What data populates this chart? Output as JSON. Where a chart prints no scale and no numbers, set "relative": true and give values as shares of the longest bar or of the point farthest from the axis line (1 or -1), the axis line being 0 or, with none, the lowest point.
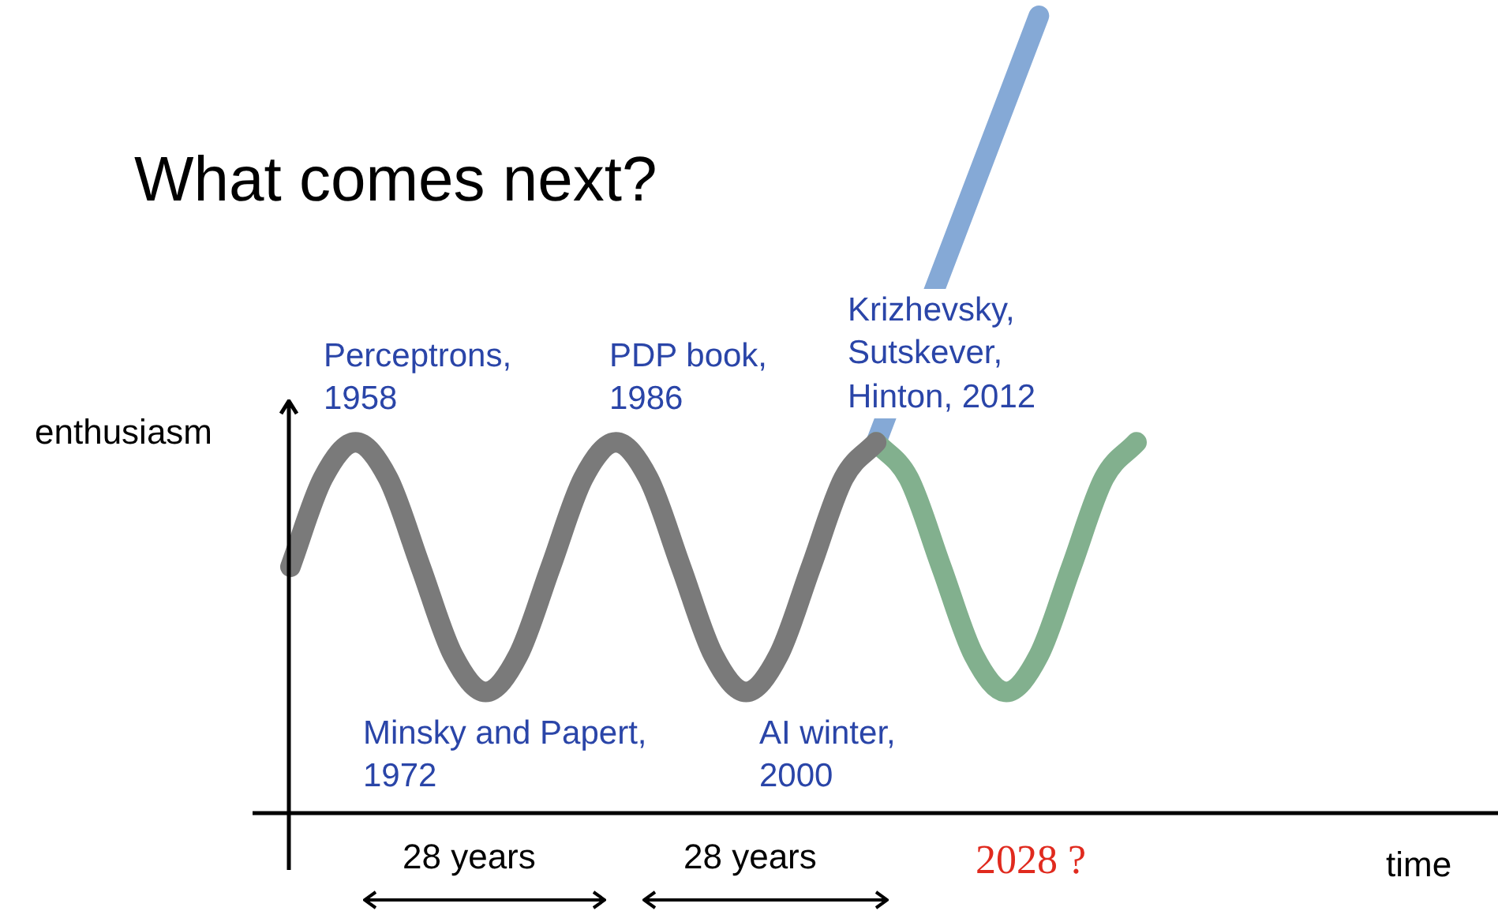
{
  "chart_data": {
    "type": "line",
    "relative": true,
    "title": "What comes next?",
    "ylabel": "enthusiasm",
    "categories": [
      null,
      null,
      null,
      null,
      null,
      null,
      null,
      null,
      null,
      null,
      null,
      null,
      null,
      null,
      null,
      null,
      null,
      null,
      null,
      null,
      null,
      null,
      null,
      null,
      null,
      null,
      null
    ],
    "series": [
      {
        "color": "#7a7a7a",
        "values": [
          0.309,
          0.42,
          0.465,
          0.42,
          0.309,
          0.198,
          0.152,
          0.198,
          0.309,
          0.42,
          0.465,
          0.42,
          0.309,
          0.198,
          0.152,
          0.198,
          0.309,
          0.42,
          0.465,
          null,
          null,
          null,
          null,
          null,
          null,
          null,
          null
        ]
      },
      {
        "color": "#82b08e",
        "values": [
          null,
          null,
          null,
          null,
          null,
          null,
          null,
          null,
          null,
          null,
          null,
          null,
          null,
          null,
          null,
          null,
          null,
          null,
          0.465,
          0.42,
          0.309,
          0.198,
          0.152,
          0.198,
          0.309,
          0.42,
          0.465
        ]
      },
      {
        "color": "#85a9d6",
        "values": [
          null,
          null,
          null,
          null,
          null,
          null,
          null,
          null,
          null,
          null,
          null,
          null,
          null,
          null,
          null,
          null,
          null,
          null,
          0.465,
          null,
          null,
          null,
          null,
          1,
          null,
          null,
          null
        ]
      }
    ],
    "annotations": [
      "Perceptrons, 1958",
      "Minsky and Papert, 1972",
      "PDP book, 1986",
      "AI winter, 2000",
      "Krizhevsky, Sutskever, Hinton, 2012",
      "28 years",
      "28 years",
      "2028 ?",
      "time"
    ]
  }
}
